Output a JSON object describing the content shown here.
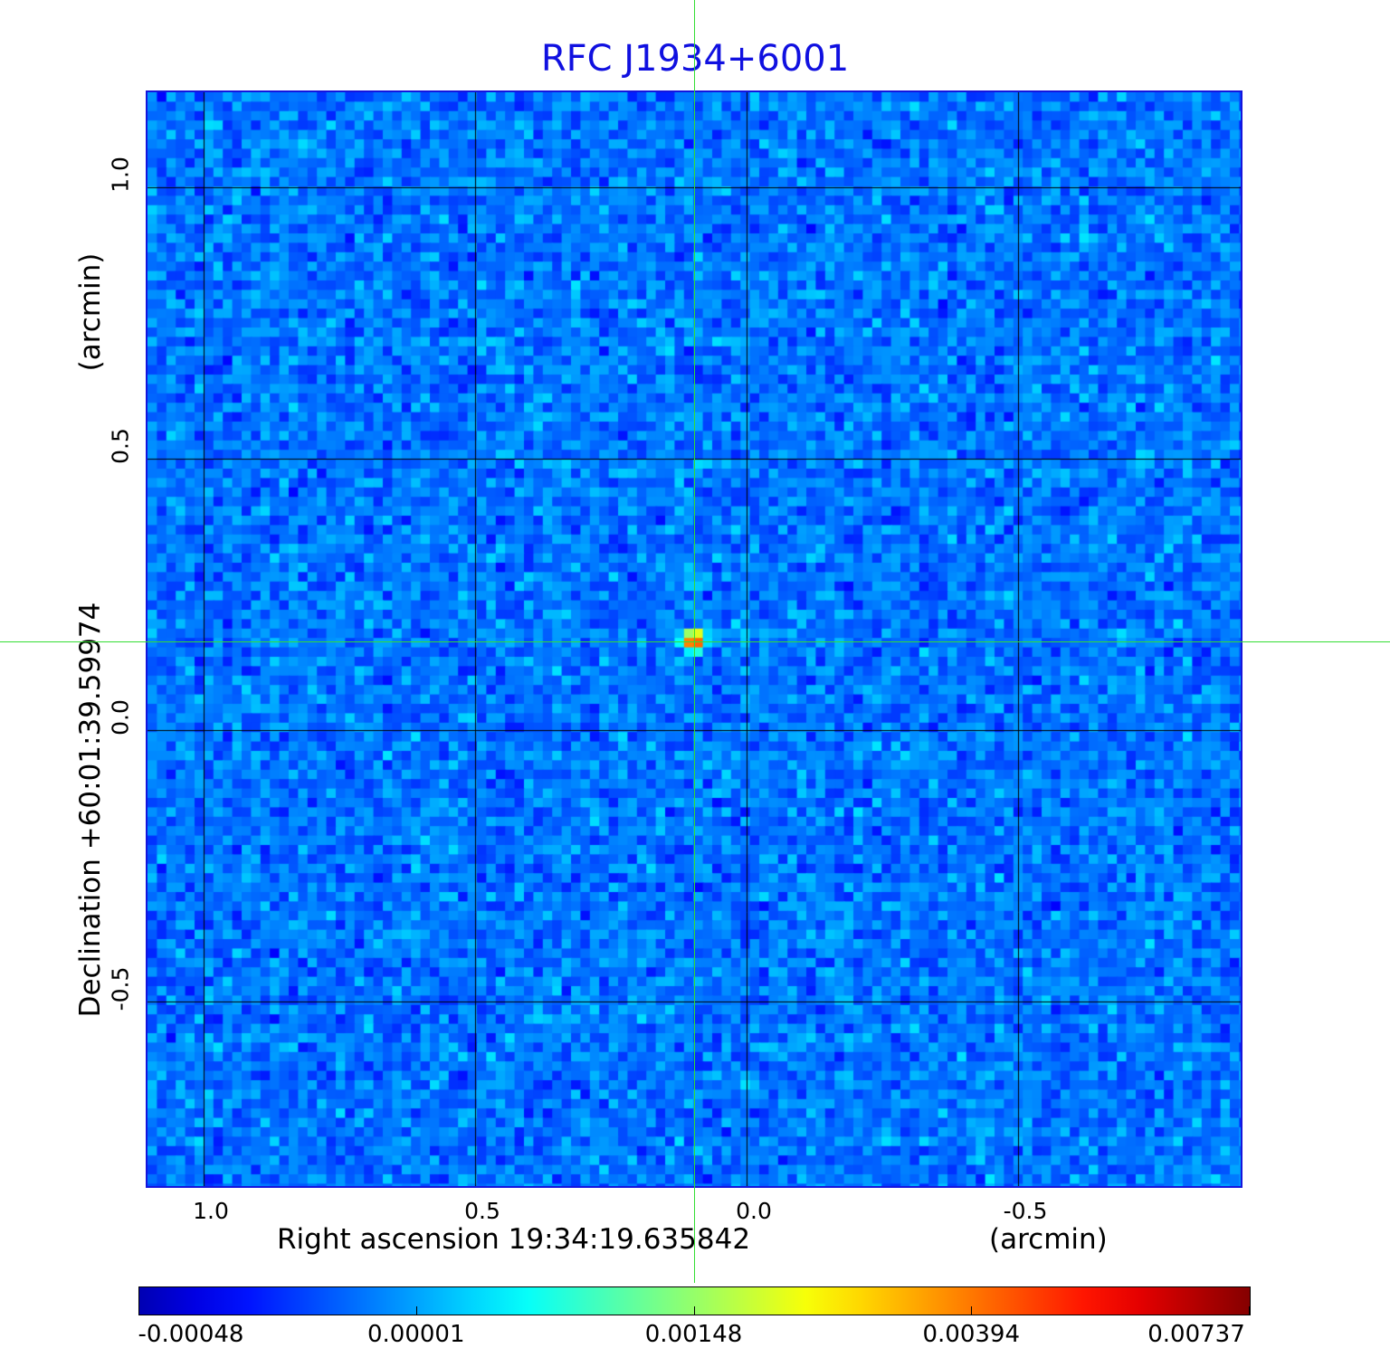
{
  "chart_data": {
    "type": "heatmap",
    "title": "RFC J1934+6001",
    "xlabel": "Right ascension  19:34:19.635842",
    "xunit": "(arcmin)",
    "ylabel": "Declination  +60:01:39.59974",
    "yunit": "(arcmin)",
    "xlim": [
      1.1,
      -0.9
    ],
    "ylim": [
      -0.84,
      1.17
    ],
    "x_ticks": [
      "1.0",
      "0.5",
      "0.0",
      "-0.5"
    ],
    "x_tick_values": [
      1.0,
      0.5,
      0.0,
      -0.5
    ],
    "y_ticks": [
      "1.0",
      "0.5",
      "0.0",
      "-0.5"
    ],
    "y_tick_values": [
      1.0,
      0.5,
      0.0,
      -0.5
    ],
    "grid": true,
    "source_peak": {
      "ra_offset_arcmin": 0.097,
      "dec_offset_arcmin": 0.163
    },
    "colormap": "jet",
    "colorbar": {
      "labels": [
        "-0.00048",
        "0.00001",
        "0.00148",
        "0.00394",
        "0.00737"
      ],
      "min": -0.00048,
      "max": 0.00737
    },
    "colors": {
      "title": "#1010e0",
      "frame": "#1515dd",
      "crosshair": "#33dd33"
    }
  }
}
